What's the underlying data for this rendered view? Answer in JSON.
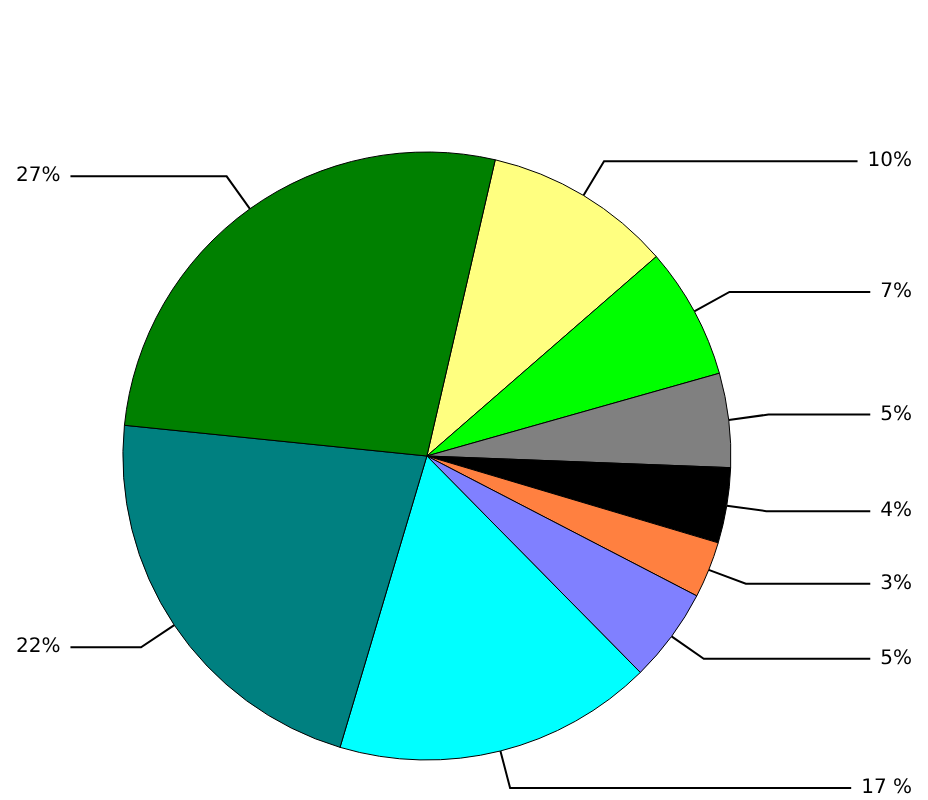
{
  "chart_data": {
    "type": "pie",
    "categories": [
      null,
      null,
      null,
      null,
      null,
      null,
      null,
      null,
      null
    ],
    "values": [
      10,
      7,
      5,
      4,
      3,
      5,
      17,
      22,
      27
    ],
    "value_labels": [
      "10%",
      "7%",
      "5%",
      "4%",
      "3%",
      "5%",
      "17 %",
      "22%",
      "27%"
    ],
    "colors": [
      "#ffff80",
      "#00ff00",
      "#808080",
      "#000000",
      "#ff8040",
      "#8080ff",
      "#00ffff",
      "#008080",
      "#008000"
    ]
  }
}
